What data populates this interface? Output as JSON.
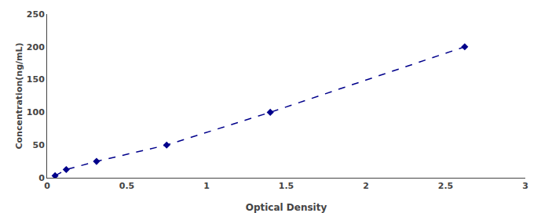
{
  "chart_data": {
    "type": "line",
    "x": [
      0.05,
      0.12,
      0.31,
      0.75,
      1.4,
      2.62
    ],
    "values": [
      3.13,
      12.5,
      25.0,
      50.0,
      100.0,
      200.0
    ],
    "xlabel": "Optical Density",
    "ylabel": "Concentration(ng/mL)",
    "xlim": [
      0,
      3
    ],
    "ylim": [
      0,
      250
    ],
    "xticks": [
      0,
      0.5,
      1,
      1.5,
      2,
      2.5,
      3
    ],
    "yticks": [
      0,
      50,
      100,
      150,
      200,
      250
    ],
    "color": "#00008B",
    "marker": "diamond",
    "line_style": "dashed",
    "grid": false
  }
}
